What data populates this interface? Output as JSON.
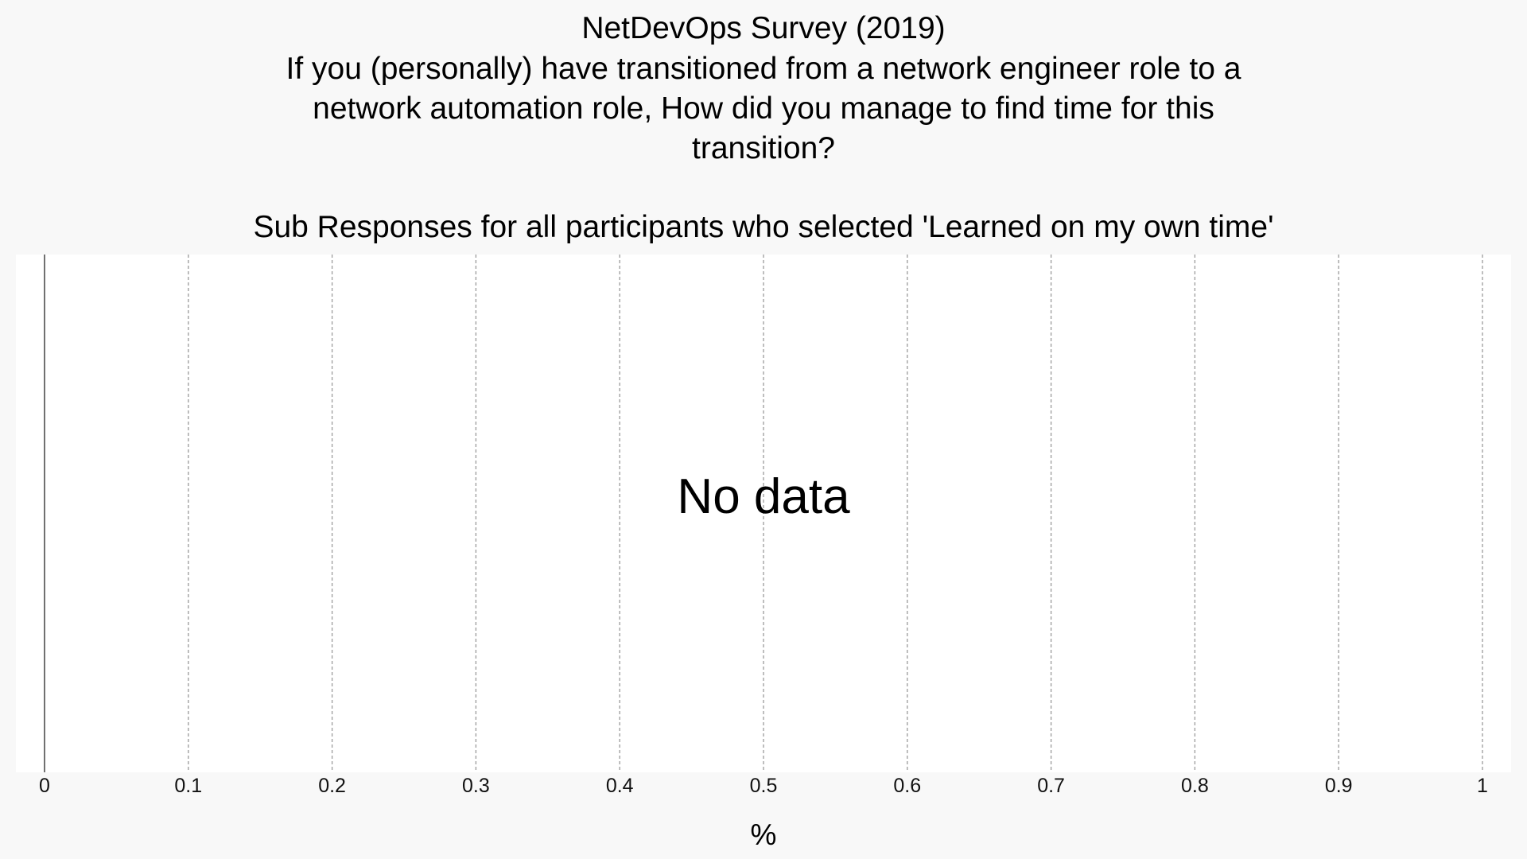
{
  "chart_data": {
    "type": "bar",
    "title": "NetDevOps Survey (2019)",
    "question": [
      "If you (personally) have transitioned from a network engineer role to a",
      "network automation role, How did you manage to find time for this",
      "transition?"
    ],
    "subtitle": "Sub Responses for all participants who selected 'Learned on my own time'",
    "xlabel": "%",
    "ylabel": "",
    "xlim": [
      0,
      1
    ],
    "x_ticks": [
      0,
      0.1,
      0.2,
      0.3,
      0.4,
      0.5,
      0.6,
      0.7,
      0.8,
      0.9,
      1
    ],
    "x_tick_labels": [
      "0",
      "0.1",
      "0.2",
      "0.3",
      "0.4",
      "0.5",
      "0.6",
      "0.7",
      "0.8",
      "0.9",
      "1"
    ],
    "categories": [],
    "values": [],
    "annotation": "No data",
    "grid": true,
    "grid_style": "dashed",
    "colors": {
      "page_background": "#f8f8f8",
      "plot_background": "#ffffff",
      "grid": "#9a9a9a",
      "axis": "#333333"
    }
  }
}
